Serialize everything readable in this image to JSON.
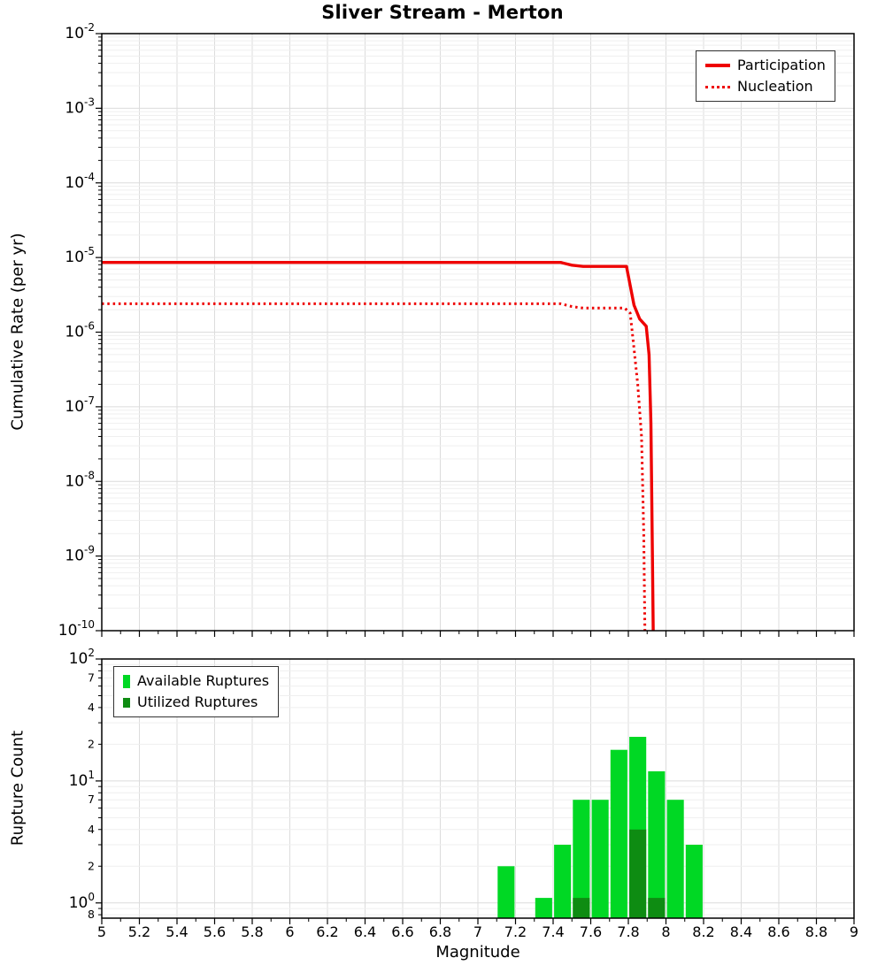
{
  "title": "Sliver Stream - Merton",
  "colors": {
    "participation": "#ee0000",
    "nucleation": "#ee0000",
    "available": "#00d824",
    "utilized": "#0e8c12",
    "grid_major": "#dcdcdc",
    "grid_minor": "#efefef"
  },
  "chart_data": [
    {
      "type": "line",
      "title": "Sliver Stream - Merton",
      "ylabel": "Cumulative Rate (per yr)",
      "xlabel": "",
      "yscale": "log",
      "ylim": [
        1e-10,
        0.01
      ],
      "xlim": [
        5,
        9
      ],
      "x_tick_step": 0.2,
      "x_tick_labels_visible": false,
      "grid": true,
      "legend_position": "top-right",
      "series": [
        {
          "name": "Participation",
          "line_style": "solid",
          "color": "#ee0000",
          "points": [
            [
              5,
              8.6e-06
            ],
            [
              7.44,
              8.6e-06
            ],
            [
              7.5,
              7.9e-06
            ],
            [
              7.56,
              7.6e-06
            ],
            [
              7.79,
              7.6e-06
            ],
            [
              7.83,
              2.3e-06
            ],
            [
              7.86,
              1.5e-06
            ],
            [
              7.895,
              1.2e-06
            ],
            [
              7.91,
              5e-07
            ],
            [
              7.92,
              6e-08
            ],
            [
              7.928,
              1e-09
            ],
            [
              7.932,
              1e-10
            ]
          ]
        },
        {
          "name": "Nucleation",
          "line_style": "dotted",
          "color": "#ee0000",
          "points": [
            [
              5,
              2.4e-06
            ],
            [
              7.44,
              2.4e-06
            ],
            [
              7.5,
              2.2e-06
            ],
            [
              7.56,
              2.1e-06
            ],
            [
              7.78,
              2.1e-06
            ],
            [
              7.81,
              1.8e-06
            ],
            [
              7.83,
              6e-07
            ],
            [
              7.85,
              2e-07
            ],
            [
              7.87,
              4e-08
            ],
            [
              7.882,
              2e-09
            ],
            [
              7.888,
              1e-10
            ]
          ]
        }
      ]
    },
    {
      "type": "bar",
      "title": "",
      "ylabel": "Rupture Count",
      "xlabel": "Magnitude",
      "yscale": "log",
      "ylim": [
        0.75,
        100
      ],
      "xlim": [
        5,
        9
      ],
      "x_tick_step": 0.2,
      "x_tick_labels_visible": true,
      "grid": true,
      "legend_position": "top-left",
      "bar_width": 0.09,
      "y_minor_labels": [
        [
          70,
          "7"
        ],
        [
          40,
          "4"
        ],
        [
          20,
          "2"
        ],
        [
          7,
          "7"
        ],
        [
          4,
          "4"
        ],
        [
          2,
          "2"
        ],
        [
          0.8,
          "8"
        ]
      ],
      "series": [
        {
          "name": "Available Ruptures",
          "color": "#00d824",
          "bars": [
            [
              7.15,
              2
            ],
            [
              7.35,
              1.1
            ],
            [
              7.45,
              3
            ],
            [
              7.55,
              7
            ],
            [
              7.65,
              7
            ],
            [
              7.75,
              18
            ],
            [
              7.85,
              23
            ],
            [
              7.95,
              12
            ],
            [
              8.05,
              7
            ],
            [
              8.15,
              3
            ]
          ]
        },
        {
          "name": "Utilized Ruptures",
          "color": "#0e8c12",
          "bars": [
            [
              7.55,
              1.1
            ],
            [
              7.85,
              4
            ],
            [
              7.95,
              1.1
            ]
          ]
        }
      ]
    }
  ]
}
